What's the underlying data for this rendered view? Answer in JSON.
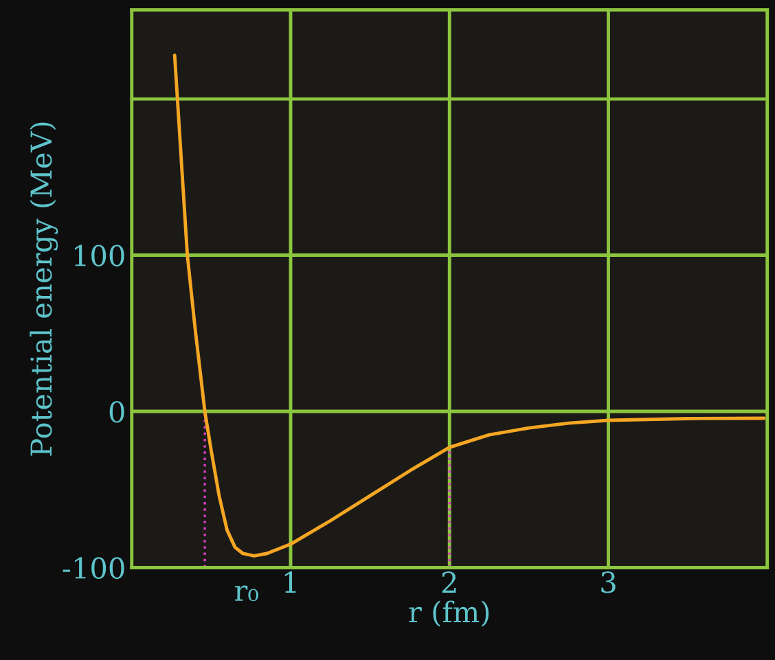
{
  "chart_data": {
    "type": "line",
    "xlabel": "r (fm)",
    "ylabel": "Potential energy (MeV)",
    "x": [
      0.27,
      0.3,
      0.35,
      0.4,
      0.46,
      0.5,
      0.55,
      0.6,
      0.65,
      0.7,
      0.77,
      0.85,
      1.0,
      1.25,
      1.5,
      1.75,
      2.0,
      2.25,
      2.5,
      2.75,
      3.0,
      3.5,
      3.98
    ],
    "series": [
      {
        "color": "#f5a623",
        "values": [
          228,
          180,
          100,
          52,
          0,
          -25,
          -54,
          -76,
          -87,
          -91,
          -92.5,
          -91,
          -85,
          -70,
          -54,
          -38,
          -23,
          -15,
          -10.6,
          -7.5,
          -5.7,
          -4.6,
          -4.4
        ]
      }
    ],
    "xlim": [
      0,
      4
    ],
    "ylim": [
      -100,
      257
    ],
    "xticks": [
      1,
      2,
      3
    ],
    "annotations": [
      "r₀"
    ],
    "yticks": [
      -100,
      0,
      100,
      {
        "value": 200,
        "label": null
      }
    ],
    "ref_lines": [
      {
        "axis": "x",
        "value": 0.46,
        "color": "#d63cc0",
        "line_style": "dotted"
      },
      {
        "axis": "x",
        "value": 2,
        "color": "#d63cc0",
        "line_style": "dotted"
      }
    ],
    "grid": true,
    "marker": "none",
    "line_style": "solid"
  }
}
